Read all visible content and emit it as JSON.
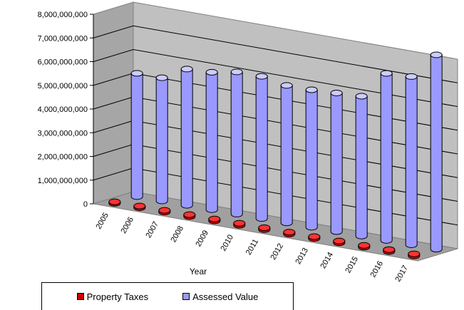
{
  "chart_data": {
    "type": "bar",
    "style": "3d-cylinder",
    "title": "",
    "xlabel": "Year",
    "ylabel": "",
    "categories": [
      "2005",
      "2006",
      "2007",
      "2008",
      "2009",
      "2010",
      "2011",
      "2012",
      "2013",
      "2014",
      "2015",
      "2016",
      "2017"
    ],
    "series": [
      {
        "name": "Property Taxes",
        "color": "#cc0000",
        "values": [
          65000000,
          70000000,
          75000000,
          80000000,
          82000000,
          85000000,
          82000000,
          80000000,
          78000000,
          77000000,
          78000000,
          85000000,
          90000000
        ]
      },
      {
        "name": "Assessed Value",
        "color": "#9999ff",
        "values": [
          5200000000,
          5200000000,
          5750000000,
          5800000000,
          6000000000,
          6000000000,
          5800000000,
          5800000000,
          5850000000,
          5900000000,
          7050000000,
          7100000000,
          8200000000
        ]
      }
    ],
    "y_ticks": [
      "0",
      "1,000,000,000",
      "2,000,000,000",
      "3,000,000,000",
      "4,000,000,000",
      "5,000,000,000",
      "6,000,000,000",
      "7,000,000,000",
      "8,000,000,000"
    ],
    "ylim": [
      0,
      8000000000
    ],
    "grid": true,
    "legend_placement": "bottom"
  }
}
